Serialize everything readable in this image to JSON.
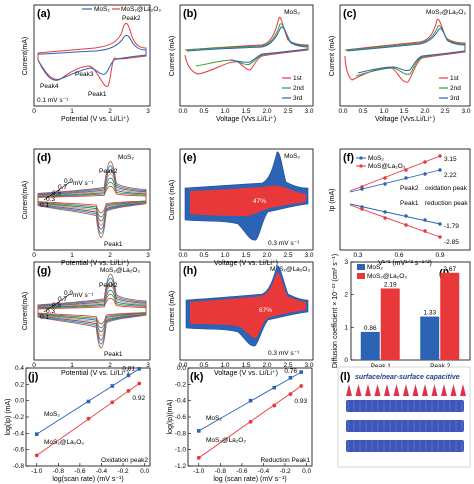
{
  "panels": {
    "a": {
      "label": "(a)",
      "legend": [
        "MoS₂",
        "MoS₂@La₂O₃"
      ],
      "ylabel": "Current(mA)",
      "xlabel": "Potential (V vs. Li/Li⁺)",
      "xticks": [
        "0",
        "1",
        "2",
        "3"
      ],
      "peaks": [
        "Peak2",
        "Peak3",
        "Peak4",
        "Peak1"
      ],
      "rate": "0.1 mV s⁻¹"
    },
    "b": {
      "label": "(b)",
      "title": "MoS₂",
      "ylabel": "Current (mA)",
      "xlabel": "Voltage (Vvs.Li/Li⁺)",
      "xticks": [
        "0.0",
        "0.5",
        "1.0",
        "1.5",
        "2.0",
        "2.5",
        "3.0"
      ],
      "legend": [
        "1st",
        "2nd",
        "3rd"
      ]
    },
    "c": {
      "label": "(c)",
      "title": "MoS₂@La₂O₃",
      "ylabel": "Current (mA)",
      "xlabel": "Voltage (Vvs.Li/Li⁺)",
      "xticks": [
        "0.0",
        "0.5",
        "1.0",
        "1.5",
        "2.0",
        "2.5",
        "3.0"
      ],
      "legend": [
        "1st",
        "2nd",
        "3rd"
      ]
    },
    "d": {
      "label": "(d)",
      "title": "MoS₂",
      "ylabel": "Current(mA)",
      "xlabel": "Potential (V vs. Li/Li⁺)",
      "xticks": [
        "0",
        "1",
        "2",
        "3"
      ],
      "rates": [
        "0.1",
        "0.3",
        "0.5",
        "0.7",
        "0.9"
      ],
      "rate_unit": "mV s⁻¹",
      "peaks": [
        "Peak2",
        "Peak1"
      ]
    },
    "e": {
      "label": "(e)",
      "title": "MoS₂",
      "ylabel": "Current (mA)",
      "xlabel": "Voltage (V vs. Li/Li⁺)",
      "xticks": [
        "0.0",
        "0.5",
        "1.0",
        "1.5",
        "2.0",
        "2.5",
        "3.0"
      ],
      "percent": "47%",
      "rate": "0.3 mV s⁻¹"
    },
    "f": {
      "label": "(f)",
      "ylabel": "Ip (mA)",
      "xlabel": "V¹ᐟ² (mV¹ᐟ² s⁻¹ᐟ²)",
      "xticks": [
        "0.3",
        "0.6",
        "0.9"
      ],
      "legend": [
        "MoS₂",
        "MoS@La₂O₃"
      ],
      "slopes": [
        "3.15",
        "2.22",
        "-1.79",
        "-2.85"
      ],
      "annotations": [
        "Peak2",
        "oxidation peak",
        "Peak1",
        "reduction peak"
      ]
    },
    "g": {
      "label": "(g)",
      "title": "MoS₂@La₂O₃",
      "ylabel": "Current(mA)",
      "xlabel": "Potential (V vs. Li/Li⁺)",
      "xticks": [
        "0",
        "1",
        "2",
        "3"
      ],
      "rates": [
        "0.1",
        "0.3",
        "0.5",
        "0.7",
        "0.9"
      ],
      "rate_unit": "mV s⁻¹",
      "peaks": [
        "Peak2",
        "Peak1"
      ]
    },
    "h": {
      "label": "(h)",
      "title": "MoS₂@La₂O₃",
      "ylabel": "Current (mA)",
      "xlabel": "Voltage (V vs. Li/Li⁺)",
      "xticks": [
        "0.0",
        "0.5",
        "1.0",
        "1.5",
        "2.0",
        "2.5",
        "3.0"
      ],
      "percent": "67%",
      "rate": "0.3 mV s⁻¹"
    },
    "i": {
      "label": "(i)"
    },
    "j": {
      "label": "(j)",
      "annotation": "Oxidation peak2"
    },
    "k": {
      "label": "(k)",
      "annotation": "Reduction Peak1"
    },
    "l": {
      "label": "(l)",
      "title": "surface/near-surface capacitive"
    }
  },
  "chart_data": [
    {
      "panel": "i",
      "type": "bar",
      "categories": [
        "Peak 1",
        "Peak 2"
      ],
      "series": [
        {
          "name": "MoS₂",
          "values": [
            0.86,
            1.33
          ],
          "color": "#2b63b5"
        },
        {
          "name": "MoS₂@La₂O₃",
          "values": [
            2.19,
            2.67
          ],
          "color": "#e8383a"
        }
      ],
      "value_labels": [
        [
          "0.86",
          "1.33"
        ],
        [
          "2.19",
          "2.67"
        ]
      ],
      "ylabel": "Diffusion coefficient × 10⁻¹³ (cm² s⁻¹)",
      "ylim": [
        0,
        3
      ],
      "yticks": [
        "0",
        "1",
        "2",
        "3"
      ],
      "legend": "top-left"
    },
    {
      "panel": "j",
      "type": "scatter",
      "x": [
        -1.0,
        -0.52,
        -0.3,
        -0.15,
        -0.05
      ],
      "series": [
        {
          "name": "MoS₂",
          "values": [
            -0.41,
            -0.01,
            0.18,
            0.31,
            0.39
          ],
          "color": "#2b63b5",
          "slope": "0.81"
        },
        {
          "name": "MoS₂@La₂O₃",
          "values": [
            -0.67,
            -0.22,
            -0.02,
            0.12,
            0.21
          ],
          "color": "#e8383a",
          "slope": "0.92"
        }
      ],
      "xlabel": "log(scan rate) (mV s⁻¹)",
      "ylabel": "log(Ip) (mA)",
      "xlim": [
        -1.1,
        0.05
      ],
      "ylim": [
        -0.8,
        0.4
      ],
      "xticks": [
        "-1.0",
        "-0.8",
        "-0.6",
        "-0.4",
        "-0.2",
        "0.0"
      ],
      "yticks": [
        "-0.8",
        "-0.6",
        "-0.4",
        "-0.2",
        "0.0",
        "0.2",
        "0.4"
      ]
    },
    {
      "panel": "k",
      "type": "scatter",
      "x": [
        -1.0,
        -0.52,
        -0.3,
        -0.15,
        -0.05
      ],
      "series": [
        {
          "name": "MoS₂",
          "values": [
            -0.77,
            -0.4,
            -0.24,
            -0.12,
            -0.05
          ],
          "color": "#2b63b5",
          "slope": "0.76"
        },
        {
          "name": "MoS₂@La₂O₃",
          "values": [
            -1.1,
            -0.66,
            -0.46,
            -0.32,
            -0.22
          ],
          "color": "#e8383a",
          "slope": "0.93"
        }
      ],
      "xlabel": "log (scan rate) (mV s⁻¹)",
      "ylabel": "log(Ip)(mA)",
      "xlim": [
        -1.1,
        0.05
      ],
      "ylim": [
        -1.2,
        0.0
      ],
      "xticks": [
        "-1.0",
        "-0.8",
        "-0.6",
        "-0.4",
        "-0.2",
        "0.0"
      ],
      "yticks": [
        "-1.2",
        "-1.0",
        "-0.8",
        "-0.6",
        "-0.4",
        "-0.2",
        "0.0"
      ]
    }
  ]
}
